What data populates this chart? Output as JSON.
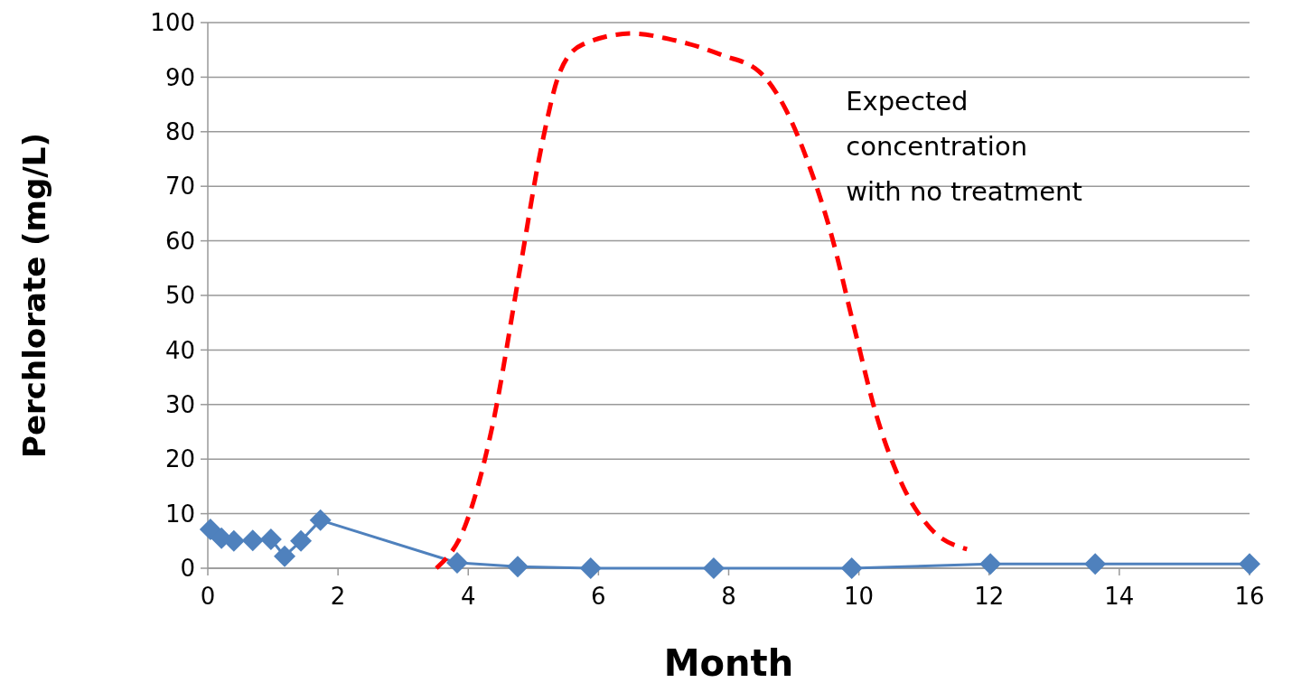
{
  "chart_data": {
    "type": "line",
    "xlabel": "Month",
    "ylabel": "Perchlorate (mg/L)",
    "xlim": [
      0,
      16
    ],
    "xticks": [
      0,
      2,
      4,
      6,
      8,
      10,
      12,
      14,
      16
    ],
    "ylim": [
      0,
      100
    ],
    "yticks": [
      0,
      10,
      20,
      30,
      40,
      50,
      60,
      70,
      80,
      90,
      100
    ],
    "grid": "y",
    "series": [
      {
        "color": "#4f81bd",
        "marker": "diamond",
        "line_style": "solid",
        "x": [
          0.04,
          0.21,
          0.4,
          0.69,
          0.97,
          1.18,
          1.43,
          1.73,
          3.83,
          4.76,
          5.88,
          7.77,
          9.89,
          12.02,
          13.63,
          16.0
        ],
        "values": [
          7.1,
          5.5,
          5,
          5.1,
          5.3,
          2.2,
          5,
          8.8,
          1,
          0.3,
          0,
          0,
          0,
          0.8,
          0.8,
          0.8
        ]
      },
      {
        "color": "#ff0000",
        "marker": "none",
        "line_style": "dashed",
        "x": [
          3.51,
          3.96,
          4.37,
          4.79,
          5.13,
          5.41,
          5.76,
          6.52,
          7.08,
          7.91,
          8.47,
          8.88,
          9.23,
          9.58,
          9.92,
          10.27,
          10.69,
          11.1,
          11.66
        ],
        "values": [
          0,
          8,
          26,
          54.5,
          77.6,
          91,
          96,
          98,
          97,
          94,
          91,
          84,
          74,
          61,
          44.5,
          28,
          14.7,
          7.3,
          3.5
        ]
      }
    ],
    "annotations": [
      "Expected concentration with no treatment"
    ]
  }
}
